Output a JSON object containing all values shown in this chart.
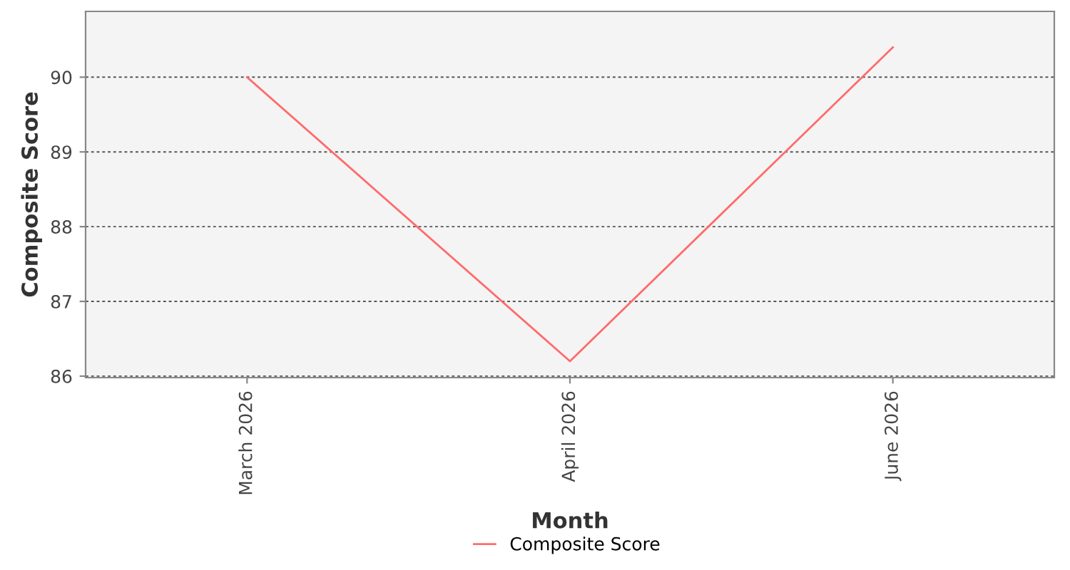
{
  "chart_data": {
    "type": "line",
    "xlabel": "Month",
    "ylabel": "Composite Score",
    "categories": [
      "March 2026",
      "April 2026",
      "June 2026"
    ],
    "series": [
      {
        "name": "Composite Score",
        "color": "#ff6b6b",
        "values": [
          90.0,
          86.2,
          90.4
        ]
      }
    ],
    "ylim": [
      85.98,
      90.88
    ],
    "yticks": [
      86,
      87,
      88,
      89,
      90
    ],
    "grid": "y",
    "legend": "bottom",
    "marker": "none",
    "line_style": "solid"
  }
}
